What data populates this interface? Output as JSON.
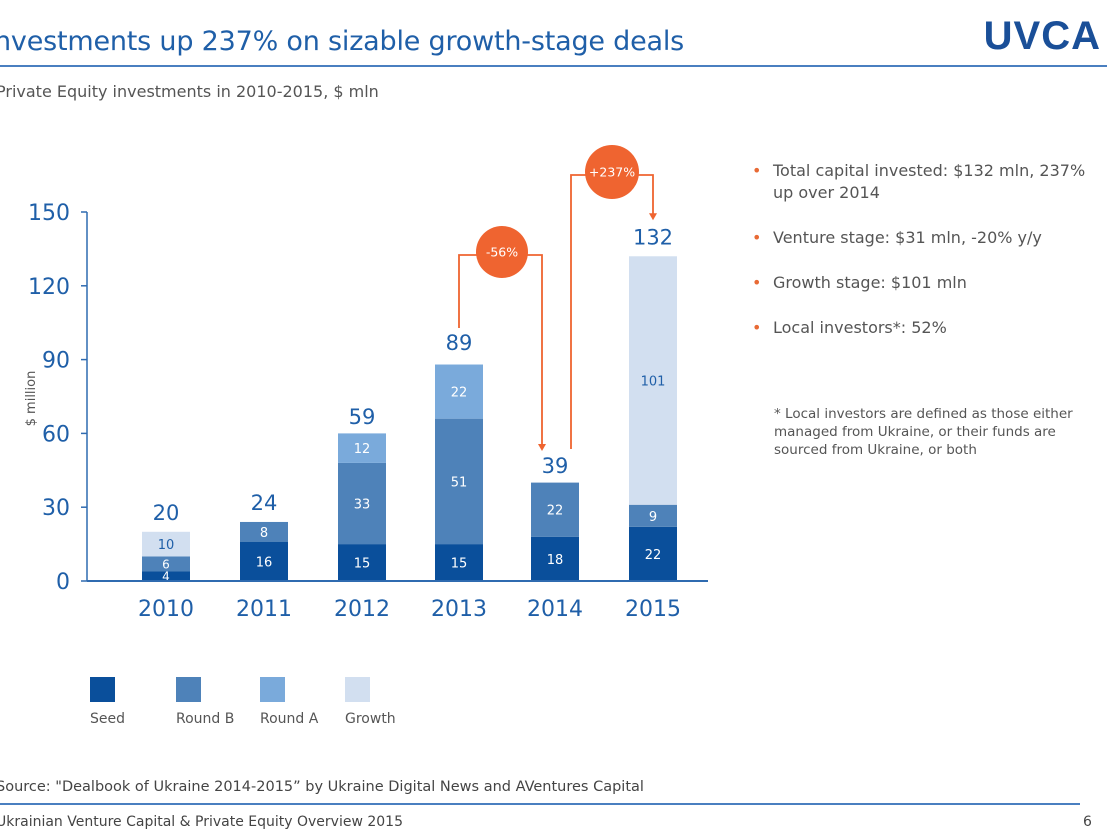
{
  "header": {
    "title": "nvestments up 237% on sizable growth-stage deals",
    "logo": "UVCA",
    "subtitle": "Private Equity investments in 2010-2015, $ mln"
  },
  "colors": {
    "seed": "#0a4f9b",
    "round_b": "#4e82b9",
    "round_a": "#7aaadb",
    "growth": "#d2dff0",
    "axis": "#2f6bb0",
    "accent": "#ef6430",
    "text_blue": "#1f5fa8"
  },
  "chart_data": {
    "type": "bar",
    "stacked": true,
    "title": "Private Equity investments in 2010-2015, $ mln",
    "xlabel": "",
    "ylabel": "$ million",
    "ylim": [
      0,
      150
    ],
    "yticks": [
      0,
      30,
      60,
      90,
      120,
      150
    ],
    "grid": false,
    "legend_position": "bottom",
    "categories": [
      "2010",
      "2011",
      "2012",
      "2013",
      "2014",
      "2015"
    ],
    "totals": [
      20,
      24,
      59,
      89,
      39,
      132
    ],
    "series": [
      {
        "name": "Seed",
        "key": "seed",
        "values": [
          4,
          16,
          15,
          15,
          18,
          22
        ]
      },
      {
        "name": "Round B",
        "key": "round_b",
        "values": [
          6,
          8,
          33,
          51,
          22,
          9
        ]
      },
      {
        "name": "Round A",
        "key": "round_a",
        "values": [
          0,
          0,
          12,
          22,
          0,
          0
        ]
      },
      {
        "name": "Growth",
        "key": "growth",
        "values": [
          10,
          0,
          0,
          0,
          0,
          101
        ]
      }
    ],
    "annotations": [
      {
        "label": "-56%",
        "from": "2013",
        "to": "2014"
      },
      {
        "label": "+237%",
        "from": "2014",
        "to": "2015"
      }
    ]
  },
  "bullets": [
    "Total capital invested: $132 mln, 237% up over 2014",
    "Venture stage: $31 mln, -20% y/y",
    "Growth stage: $101 mln",
    "Local investors*: 52%"
  ],
  "bullet_icon": "•",
  "footnote": "* Local investors are defined as those either managed from Ukraine, or their funds are sourced from Ukraine, or both",
  "legend": [
    {
      "label": "Seed",
      "key": "seed"
    },
    {
      "label": "Round B",
      "key": "round_b"
    },
    {
      "label": "Round A",
      "key": "round_a"
    },
    {
      "label": "Growth",
      "key": "growth"
    }
  ],
  "footer": {
    "source": "Source: \"Dealbook of Ukraine 2014-2015” by Ukraine Digital News and AVentures Capital",
    "text": "Ukrainian Venture Capital & Private Equity Overview 2015",
    "page": "6"
  }
}
